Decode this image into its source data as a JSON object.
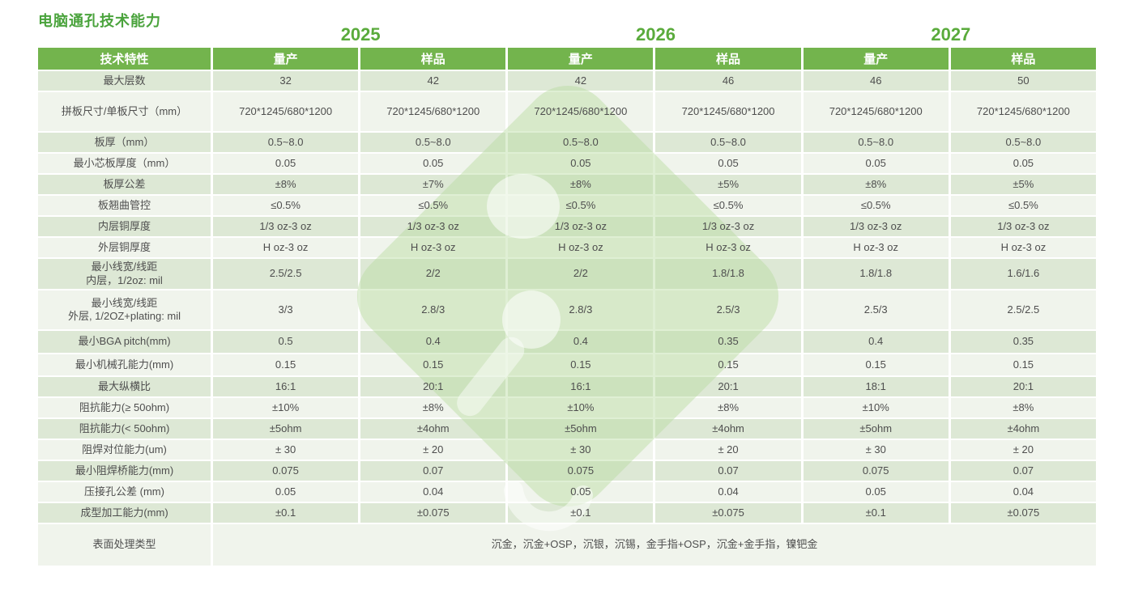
{
  "page": {
    "title": "电脑通孔技术能力"
  },
  "colors": {
    "title_green": "#4aa33c",
    "year_green": "#5aab3c",
    "header_bg": "#73b44d",
    "row_dark": "#dde8d5",
    "row_light": "#f0f4ec",
    "cell_text": "#4e4e4e",
    "watermark_green": "#b7db9f"
  },
  "table": {
    "year_groups": [
      "2025",
      "2026",
      "2027"
    ],
    "header": {
      "feature": "技术特性",
      "subheaders": [
        "量产",
        "样品",
        "量产",
        "样品",
        "量产",
        "样品"
      ]
    },
    "rows": [
      {
        "label": "最大层数",
        "values": [
          "32",
          "42",
          "42",
          "46",
          "46",
          "50"
        ]
      },
      {
        "label": "拼板尺寸/单板尺寸（mm）",
        "values": [
          "720*1245/680*1200",
          "720*1245/680*1200",
          "720*1245/680*1200",
          "720*1245/680*1200",
          "720*1245/680*1200",
          "720*1245/680*1200"
        ]
      },
      {
        "label": "板厚（mm）",
        "values": [
          "0.5~8.0",
          "0.5~8.0",
          "0.5~8.0",
          "0.5~8.0",
          "0.5~8.0",
          "0.5~8.0"
        ]
      },
      {
        "label": "最小芯板厚度（mm）",
        "values": [
          "0.05",
          "0.05",
          "0.05",
          "0.05",
          "0.05",
          "0.05"
        ]
      },
      {
        "label": "板厚公差",
        "values": [
          "±8%",
          "±7%",
          "±8%",
          "±5%",
          "±8%",
          "±5%"
        ]
      },
      {
        "label": "板翘曲管控",
        "values": [
          "≤0.5%",
          "≤0.5%",
          "≤0.5%",
          "≤0.5%",
          "≤0.5%",
          "≤0.5%"
        ]
      },
      {
        "label": "内层铜厚度",
        "values": [
          "1/3 oz-3 oz",
          "1/3 oz-3 oz",
          "1/3 oz-3 oz",
          "1/3 oz-3 oz",
          "1/3 oz-3 oz",
          "1/3 oz-3 oz"
        ]
      },
      {
        "label": "外层铜厚度",
        "values": [
          "H oz-3 oz",
          "H oz-3 oz",
          "H oz-3 oz",
          "H oz-3 oz",
          "H oz-3 oz",
          "H oz-3 oz"
        ]
      },
      {
        "label": "最小线宽/线距\n内层，1/2oz: mil",
        "values": [
          "2.5/2.5",
          "2/2",
          "2/2",
          "1.8/1.8",
          "1.8/1.8",
          "1.6/1.6"
        ]
      },
      {
        "label": "最小线宽/线距\n外层, 1/2OZ+plating: mil",
        "values": [
          "3/3",
          "2.8/3",
          "2.8/3",
          "2.5/3",
          "2.5/3",
          "2.5/2.5"
        ]
      },
      {
        "label": "最小BGA pitch(mm)",
        "values": [
          "0.5",
          "0.4",
          "0.4",
          "0.35",
          "0.4",
          "0.35"
        ]
      },
      {
        "label": "最小机械孔能力(mm)",
        "values": [
          "0.15",
          "0.15",
          "0.15",
          "0.15",
          "0.15",
          "0.15"
        ]
      },
      {
        "label": "最大纵横比",
        "values": [
          "16:1",
          "20:1",
          "16:1",
          "20:1",
          "18:1",
          "20:1"
        ]
      },
      {
        "label": "阻抗能力(≥ 50ohm)",
        "values": [
          "±10%",
          "±8%",
          "±10%",
          "±8%",
          "±10%",
          "±8%"
        ]
      },
      {
        "label": "阻抗能力(< 50ohm)",
        "values": [
          "±5ohm",
          "±4ohm",
          "±5ohm",
          "±4ohm",
          "±5ohm",
          "±4ohm"
        ]
      },
      {
        "label": "阻焊对位能力(um)",
        "values": [
          "± 30",
          "± 20",
          "± 30",
          "± 20",
          "± 30",
          "± 20"
        ]
      },
      {
        "label": "最小阻焊桥能力(mm)",
        "values": [
          "0.075",
          "0.07",
          "0.075",
          "0.07",
          "0.075",
          "0.07"
        ]
      },
      {
        "label": "压接孔公差 (mm)",
        "values": [
          "0.05",
          "0.04",
          "0.05",
          "0.04",
          "0.05",
          "0.04"
        ]
      },
      {
        "label": "成型加工能力(mm)",
        "values": [
          "±0.1",
          "±0.075",
          "±0.1",
          "±0.075",
          "±0.1",
          "±0.075"
        ]
      }
    ],
    "surface_row": {
      "label": "表面处理类型",
      "value": "沉金，沉金+OSP，沉银，沉锡，金手指+OSP，沉金+金手指，镍钯金"
    }
  }
}
